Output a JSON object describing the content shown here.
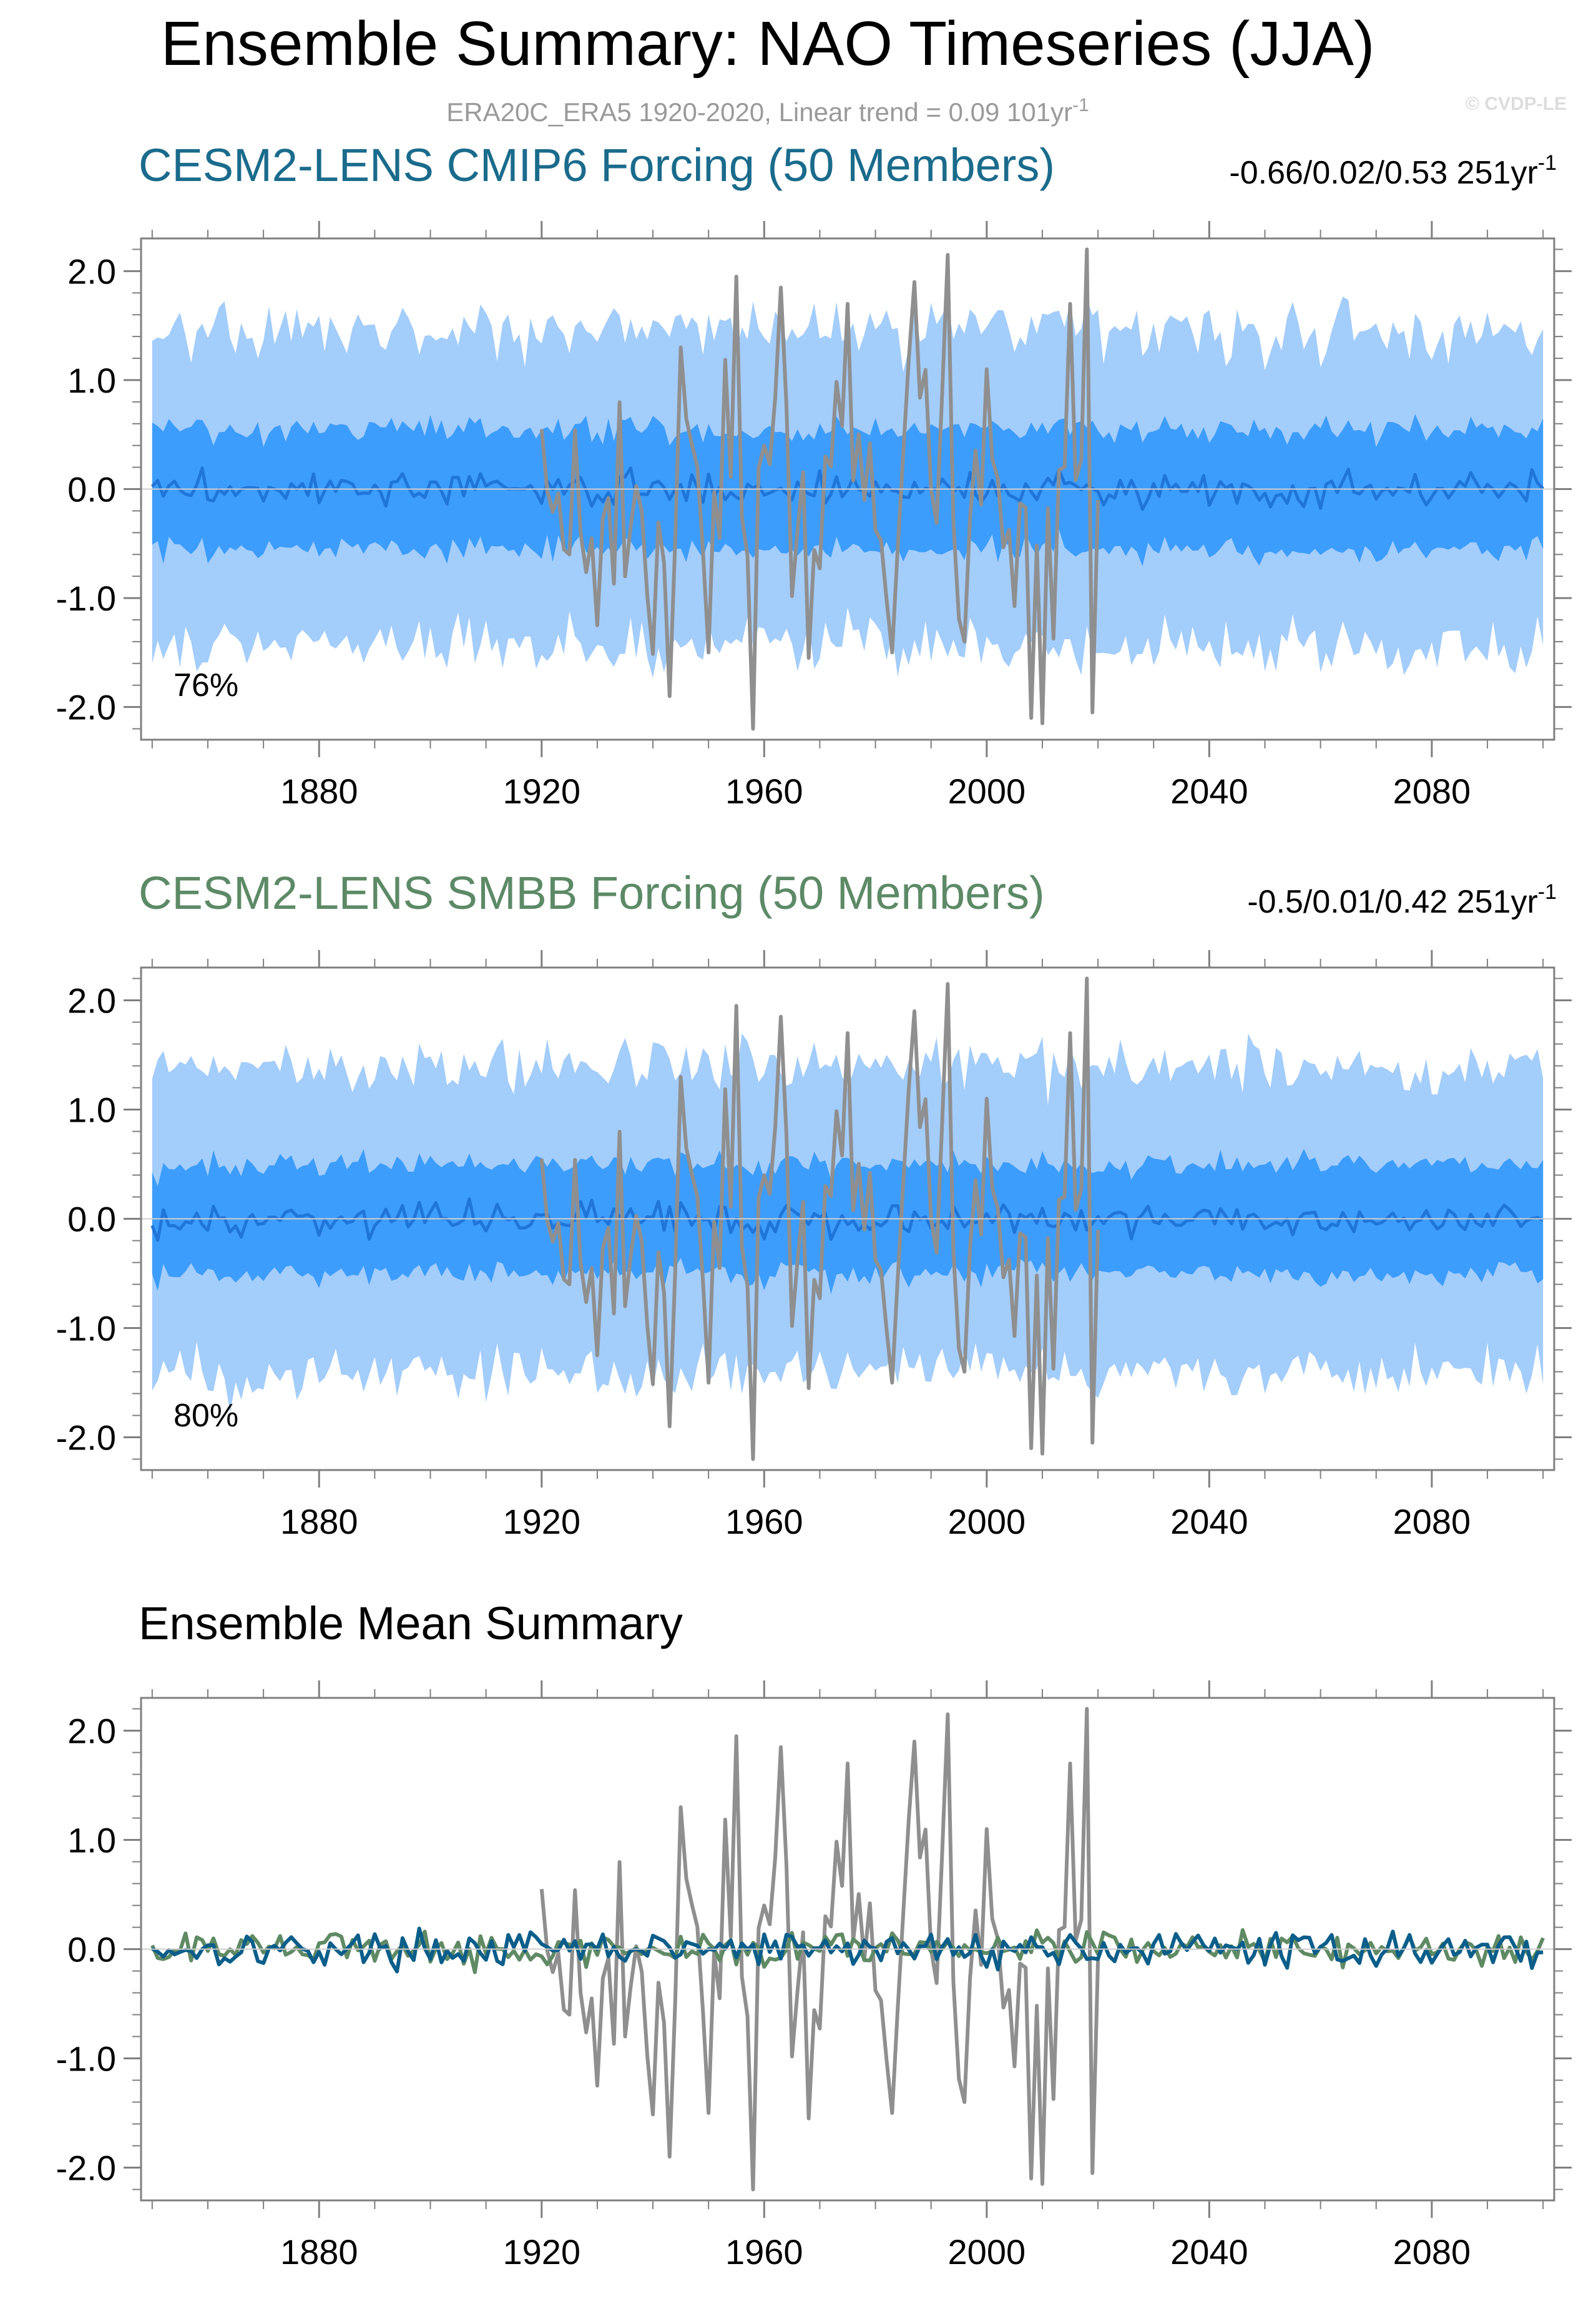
{
  "figure": {
    "title": "Ensemble Summary: NAO Timeseries (JJA)",
    "subtitle": "ERA20C_ERA5 1920-2020, Linear trend = 0.09 101yr",
    "subtitle_sup": "-1",
    "copyright": "© CVDP-LE"
  },
  "colors": {
    "band_outer": "#a3cdfb",
    "band_inner": "#3c9dfc",
    "ensemble_mean_in_band": "#2075d9",
    "observations": "#8f8f8f",
    "cmip6_mean": "#0b5e8a",
    "smbb_mean": "#5f8a64",
    "panel1_title": "#1a6b8c",
    "panel2_title": "#5c8a66",
    "panel3_title": "#000000"
  },
  "chart_data": [
    {
      "type": "line",
      "title": "CESM2-LENS CMIP6 Forcing (50 Members)",
      "stats": "-0.66/0.02/0.53 251yr",
      "stats_sup": "-1",
      "annotation": "76%",
      "x_range": [
        1850,
        2100
      ],
      "xlim": [
        1848,
        2102
      ],
      "ylim": [
        -2.3,
        2.3
      ],
      "x_ticks": [
        1880,
        1920,
        1960,
        2000,
        2040,
        2080
      ],
      "y_ticks": [
        -2.0,
        -1.0,
        0.0,
        1.0,
        2.0
      ],
      "y_tick_labels": [
        "-2.0",
        "-1.0",
        "0.0",
        "1.0",
        "2.0"
      ],
      "grid": false,
      "series": [
        {
          "kind": "band",
          "description": "ensemble 2.5-97.5% range",
          "center": 0.0,
          "half_width": 1.45
        },
        {
          "kind": "band",
          "description": "ensemble 25-75% range",
          "center": 0.0,
          "half_width": 0.55
        },
        {
          "kind": "line",
          "description": "ensemble mean",
          "amplitude": 0.15
        },
        {
          "kind": "line",
          "description": "observations 1920-2020",
          "x_range": [
            1920,
            2020
          ],
          "amplitude": 0.9
        }
      ]
    },
    {
      "type": "line",
      "title": "CESM2-LENS SMBB Forcing (50 Members)",
      "stats": "-0.5/0.01/0.42 251yr",
      "stats_sup": "-1",
      "annotation": "80%",
      "x_range": [
        1850,
        2100
      ],
      "xlim": [
        1848,
        2102
      ],
      "ylim": [
        -2.3,
        2.3
      ],
      "x_ticks": [
        1880,
        1920,
        1960,
        2000,
        2040,
        2080
      ],
      "y_ticks": [
        -2.0,
        -1.0,
        0.0,
        1.0,
        2.0
      ],
      "y_tick_labels": [
        "-2.0",
        "-1.0",
        "0.0",
        "1.0",
        "2.0"
      ],
      "grid": false,
      "series": [
        {
          "kind": "band",
          "description": "ensemble 2.5-97.5% range",
          "center": 0.0,
          "half_width": 1.4
        },
        {
          "kind": "band",
          "description": "ensemble 25-75% range",
          "center": 0.0,
          "half_width": 0.5
        },
        {
          "kind": "line",
          "description": "ensemble mean",
          "amplitude": 0.15
        },
        {
          "kind": "line",
          "description": "observations 1920-2020",
          "x_range": [
            1920,
            2020
          ],
          "amplitude": 0.9
        }
      ]
    },
    {
      "type": "line",
      "title": "Ensemble Mean Summary",
      "x_range": [
        1850,
        2100
      ],
      "xlim": [
        1848,
        2102
      ],
      "ylim": [
        -2.3,
        2.3
      ],
      "x_ticks": [
        1880,
        1920,
        1960,
        2000,
        2040,
        2080
      ],
      "y_ticks": [
        -2.0,
        -1.0,
        0.0,
        1.0,
        2.0
      ],
      "y_tick_labels": [
        "-2.0",
        "-1.0",
        "0.0",
        "1.0",
        "2.0"
      ],
      "grid": false,
      "series": [
        {
          "kind": "line",
          "description": "observations 1920-2020",
          "x_range": [
            1920,
            2020
          ],
          "amplitude": 0.9
        },
        {
          "kind": "line",
          "description": "CESM2-LENS SMBB ensemble mean",
          "amplitude": 0.15
        },
        {
          "kind": "line",
          "description": "CESM2-LENS CMIP6 ensemble mean",
          "amplitude": 0.15
        }
      ]
    }
  ],
  "obs_key_points": {
    "x": [
      1920,
      1925,
      1927,
      1930,
      1935,
      1943,
      1945,
      1950,
      1955,
      1958,
      1960,
      1963,
      1968,
      1975,
      1983,
      1987,
      1993,
      1996,
      2000,
      2008,
      2010,
      2015,
      2018,
      2019,
      2020
    ],
    "y": [
      0.55,
      -0.6,
      -0.4,
      -1.25,
      -0.8,
      -1.9,
      1.3,
      -1.5,
      1.95,
      -2.2,
      0.4,
      1.85,
      -1.55,
      1.7,
      -1.5,
      1.9,
      2.15,
      -1.4,
      1.1,
      -2.1,
      -2.15,
      1.7,
      2.2,
      -2.05,
      -0.1
    ]
  }
}
